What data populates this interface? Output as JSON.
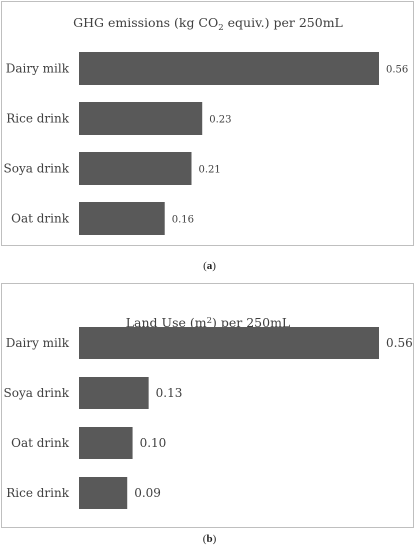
{
  "chart_data": [
    {
      "type": "bar",
      "orientation": "horizontal",
      "title_parts": {
        "pre": "GHG emissions (kg CO",
        "sub": "2",
        "post": " equiv.) per 250mL"
      },
      "categories": [
        "Dairy milk",
        "Rice drink",
        "Soya drink",
        "Oat drink"
      ],
      "values": [
        0.56,
        0.23,
        0.21,
        0.16
      ],
      "value_labels": [
        "0.56",
        "0.23",
        "0.21",
        "0.16"
      ],
      "bar_color": "#595959",
      "xlim": [
        0,
        0.56
      ],
      "grid": false,
      "panel_label": {
        "open": "(",
        "letter": "a",
        "close": ")"
      }
    },
    {
      "type": "bar",
      "orientation": "horizontal",
      "title_parts": {
        "pre": "Land Use (m",
        "sup": "2",
        "post": ") per 250mL"
      },
      "categories": [
        "Dairy milk",
        "Soya drink",
        "Oat drink",
        "Rice drink"
      ],
      "values": [
        0.56,
        0.13,
        0.1,
        0.09
      ],
      "value_labels": [
        "0.56",
        "0.13",
        "0.10",
        "0.09"
      ],
      "bar_color": "#595959",
      "xlim": [
        0,
        0.56
      ],
      "grid": false,
      "panel_label": {
        "open": "(",
        "letter": "b",
        "close": ")"
      }
    }
  ]
}
